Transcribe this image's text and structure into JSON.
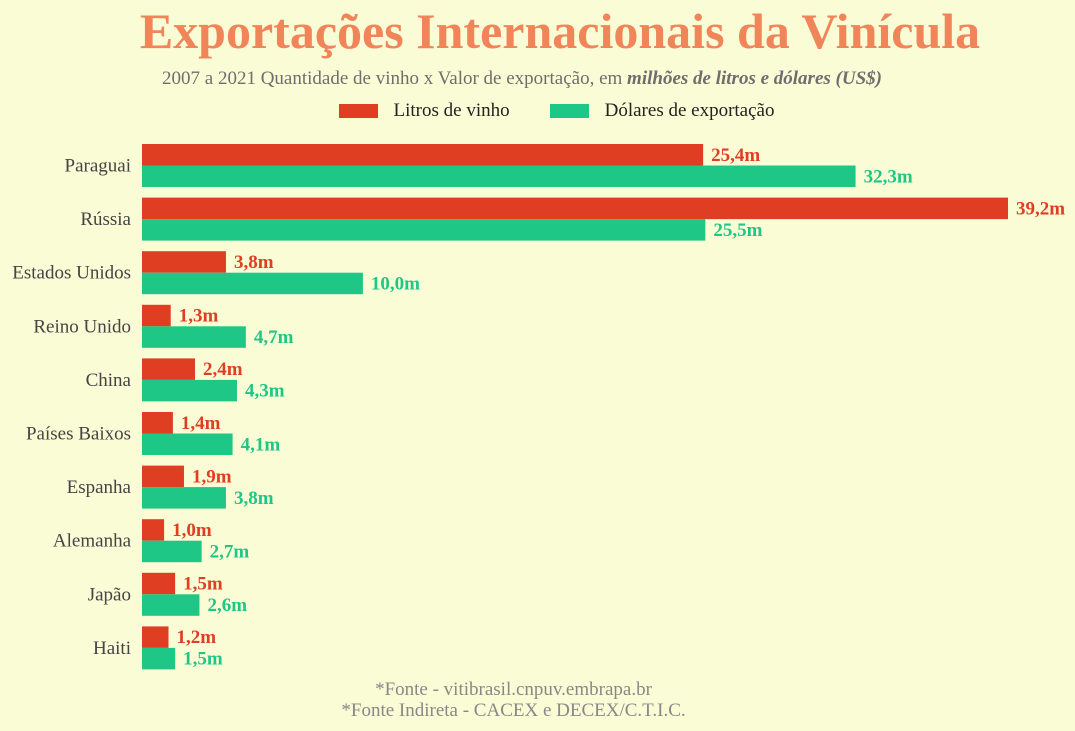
{
  "chart_data": {
    "type": "bar",
    "orientation": "horizontal",
    "title": "Exportações Internacionais da Vinícula",
    "subtitle_plain": "2007 a 2021 Quantidade de vinho x Valor de exportação, em ",
    "subtitle_emphasis": "milhões de litros e dólares (US$)",
    "categories": [
      "Paraguai",
      "Rússia",
      "Estados Unidos",
      "Reino Unido",
      "China",
      "Países Baixos",
      "Espanha",
      "Alemanha",
      "Japão",
      "Haiti"
    ],
    "series": [
      {
        "name": "Litros de vinho",
        "color": "#e03e22",
        "values": [
          25.4,
          39.2,
          3.8,
          1.3,
          2.4,
          1.4,
          1.9,
          1.0,
          1.5,
          1.2
        ],
        "labels": [
          "25,4m",
          "39,2m",
          "3,8m",
          "1,3m",
          "2,4m",
          "1,4m",
          "1,9m",
          "1,0m",
          "1,5m",
          "1,2m"
        ]
      },
      {
        "name": "Dólares de exportação",
        "color": "#1fc787",
        "values": [
          32.3,
          25.5,
          10.0,
          4.7,
          4.3,
          4.1,
          3.8,
          2.7,
          2.6,
          1.5
        ],
        "labels": [
          "32,3m",
          "25,5m",
          "10,0m",
          "4,7m",
          "4,3m",
          "4,1m",
          "3,8m",
          "2,7m",
          "2,6m",
          "1,5m"
        ]
      }
    ],
    "xlim": [
      0,
      39.2
    ],
    "grid": false,
    "legend_position": "top-center"
  },
  "footer": {
    "line1": "*Fonte - vitibrasil.cnpuv.embrapa.br",
    "line2": "*Fonte Indireta - CACEX e DECEX/C.T.I.C."
  }
}
